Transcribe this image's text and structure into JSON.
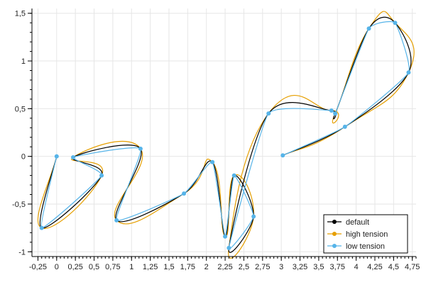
{
  "colors": {
    "default": "#000000",
    "high_tension": "#e69f00",
    "low_tension": "#56b4e9",
    "grid": "#e6e6e6"
  },
  "chart_data": {
    "type": "line",
    "title": "",
    "xlabel": "",
    "ylabel": "",
    "xlim": [
      -0.33,
      4.8
    ],
    "ylim": [
      -1.05,
      1.55
    ],
    "grid": true,
    "legend_position": "bottom-right",
    "x_ticks": [
      -0.25,
      0,
      0.25,
      0.5,
      0.75,
      1,
      1.25,
      1.5,
      1.75,
      2,
      2.25,
      2.5,
      2.75,
      3,
      3.25,
      3.5,
      3.75,
      4,
      4.25,
      4.5,
      4.75
    ],
    "x_tick_labels": [
      "-0,25",
      "0",
      "0,25",
      "0,5",
      "0,75",
      "1",
      "1,25",
      "1,5",
      "1,75",
      "2",
      "2,25",
      "2,5",
      "2,75",
      "3",
      "3,25",
      "3,5",
      "3,75",
      "4",
      "4,25",
      "4,5",
      "4,75"
    ],
    "y_ticks": [
      -1,
      -0.5,
      0,
      0.5,
      1,
      1.5
    ],
    "y_tick_labels": [
      "-1",
      "-0,5",
      "0",
      "0,5",
      "1",
      "1,5"
    ],
    "points": [
      {
        "x": 0,
        "y": 0
      },
      {
        "x": -0.2,
        "y": -0.75
      },
      {
        "x": 0.6,
        "y": -0.2
      },
      {
        "x": 0.22,
        "y": -0.01
      },
      {
        "x": 1.12,
        "y": 0.08
      },
      {
        "x": 0.8,
        "y": -0.67
      },
      {
        "x": 1.7,
        "y": -0.39
      },
      {
        "x": 2.08,
        "y": -0.06
      },
      {
        "x": 2.25,
        "y": -0.84
      },
      {
        "x": 2.37,
        "y": -0.2
      },
      {
        "x": 2.63,
        "y": -0.63
      },
      {
        "x": 2.3,
        "y": -0.96
      },
      {
        "x": 2.83,
        "y": 0.45
      },
      {
        "x": 3.67,
        "y": 0.48
      },
      {
        "x": 3.72,
        "y": 0.45
      },
      {
        "x": 4.17,
        "y": 1.34
      },
      {
        "x": 4.52,
        "y": 1.4
      },
      {
        "x": 4.7,
        "y": 0.88
      },
      {
        "x": 3.85,
        "y": 0.31
      },
      {
        "x": 3.02,
        "y": 0.01
      }
    ],
    "series": [
      {
        "name": "default",
        "tension": 0.5,
        "color": "#000000",
        "show_markers": false
      },
      {
        "name": "high tension",
        "tension": 0.85,
        "color": "#e69f00",
        "show_markers": false
      },
      {
        "name": "low tension",
        "tension": 0.2,
        "color": "#56b4e9",
        "show_markers": true
      }
    ]
  }
}
